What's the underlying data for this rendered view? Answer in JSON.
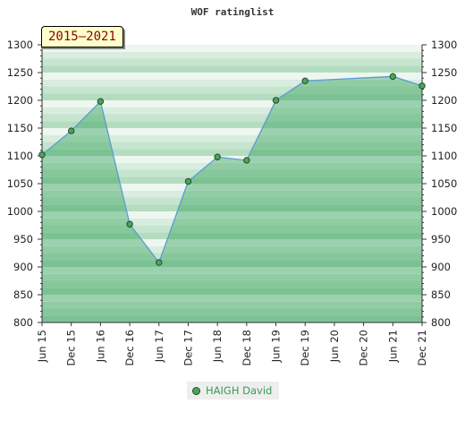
{
  "chart_data": {
    "type": "area",
    "title": "WOF ratinglist",
    "range_label": "2015–2021",
    "categories": [
      "Jun 15",
      "Dec 15",
      "Jun 16",
      "Dec 16",
      "Jun 17",
      "Dec 17",
      "Jun 18",
      "Dec 18",
      "Jun 19",
      "Dec 19",
      "Jun 20",
      "Dec 20",
      "Jun 21",
      "Dec 21"
    ],
    "series": [
      {
        "name": "HAIGH David",
        "color": "#5b9bd5",
        "points": [
          {
            "i": 0,
            "y": 1102
          },
          {
            "i": 1,
            "y": 1145
          },
          {
            "i": 2,
            "y": 1198
          },
          {
            "i": 3,
            "y": 977
          },
          {
            "i": 4,
            "y": 908
          },
          {
            "i": 5,
            "y": 1054
          },
          {
            "i": 6,
            "y": 1098
          },
          {
            "i": 7,
            "y": 1092
          },
          {
            "i": 8,
            "y": 1200
          },
          {
            "i": 9,
            "y": 1235
          },
          {
            "i": 12,
            "y": 1243
          },
          {
            "i": 13,
            "y": 1226
          }
        ]
      }
    ],
    "ylim": [
      800,
      1300
    ],
    "yticks": [
      800,
      850,
      900,
      950,
      1000,
      1050,
      1100,
      1150,
      1200,
      1250,
      1300
    ],
    "grid": true,
    "legend": "bottom-center",
    "colors": {
      "band_light": [
        "#b5dcc0",
        "#c6e5ce",
        "#d8eddf",
        "#edf7f0"
      ],
      "band_dark": [
        "#7bc293",
        "#86c79c",
        "#91cca5",
        "#9bd1ae"
      ],
      "marker": "#4ea35c"
    }
  }
}
